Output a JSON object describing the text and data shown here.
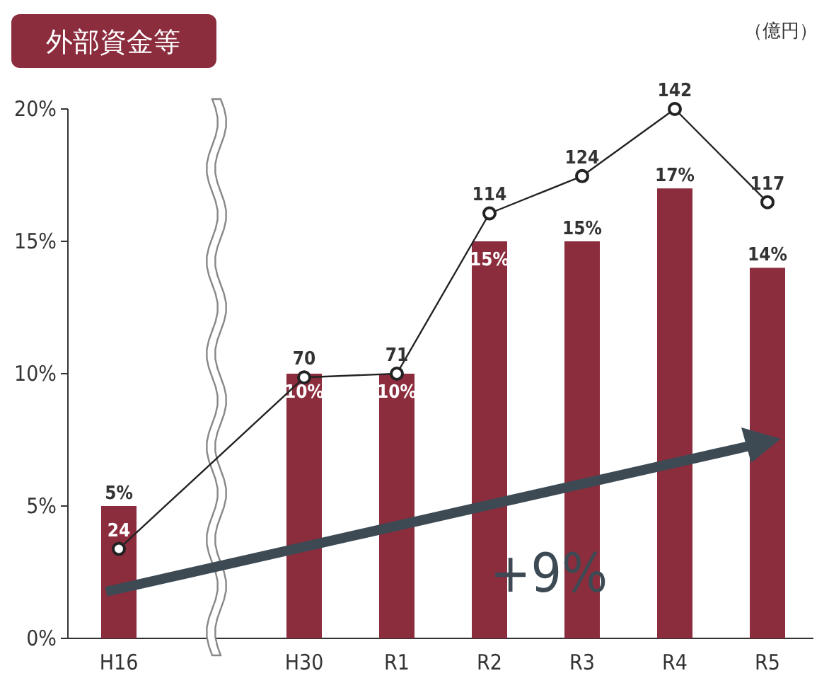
{
  "chart_data": {
    "type": "bar",
    "title": "外部資金等",
    "y2label": "（億円）",
    "categories": [
      "H16",
      "H30",
      "R1",
      "R2",
      "R3",
      "R4",
      "R5"
    ],
    "series": [
      {
        "color": "#8c2d3e",
        "values": [
          5,
          10,
          10,
          15,
          15,
          17,
          14
        ],
        "value_labels": [
          "5%",
          "10%",
          "10%",
          "15%",
          "15%",
          "17%",
          "14%"
        ]
      },
      {
        "type": "line",
        "axis": "y2",
        "color": "#222222",
        "marker": "circle",
        "values": [
          24,
          70,
          71,
          114,
          124,
          142,
          117
        ],
        "value_labels": [
          "24",
          "70",
          "71",
          "114",
          "124",
          "142",
          "117"
        ]
      }
    ],
    "ylim": [
      0,
      20
    ],
    "yticks": [
      {
        "value": 0,
        "label": "0%"
      },
      {
        "value": 5,
        "label": "5%"
      },
      {
        "value": 10,
        "label": "10%"
      },
      {
        "value": 15,
        "label": "15%"
      },
      {
        "value": 20,
        "label": "20%"
      }
    ],
    "y2lim": [
      0,
      142
    ],
    "grid": false,
    "annotations": [
      "+9%"
    ]
  }
}
